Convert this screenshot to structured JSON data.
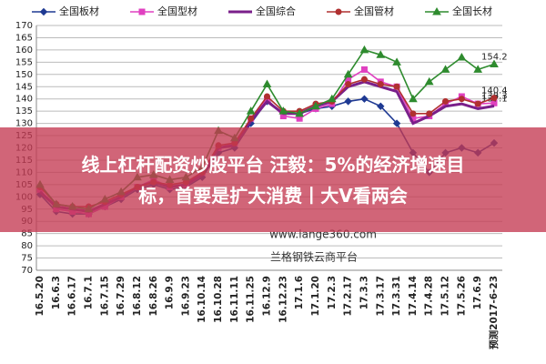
{
  "chart_data": {
    "type": "line",
    "categories": [
      "16.5.20",
      "16.6.3",
      "16.6.17",
      "16.7.1",
      "16.7.15",
      "16.7.29",
      "16.8.12",
      "16.8.26",
      "16.9.9",
      "16.9.23",
      "16.10.14",
      "16.10.28",
      "16.11.11",
      "16.11.25",
      "16.12.9",
      "16.12.23",
      "17.1.6",
      "17.1.20",
      "17.2.3",
      "17.2.17",
      "17.3.3",
      "17.3.17",
      "17.3.31",
      "17.4.14",
      "17.4.28",
      "17.5.12",
      "17.5.26",
      "17.6.9",
      "预测2017-6-23"
    ],
    "series": [
      {
        "name": "全国板材",
        "color": "#1f3a93",
        "marker": "diamond",
        "end_label": false,
        "values": [
          101,
          94,
          93,
          93,
          96,
          99,
          103,
          105,
          103,
          104,
          108,
          118,
          120,
          130,
          139,
          134,
          134,
          136,
          137,
          139,
          140,
          137,
          130,
          118,
          110,
          118,
          120,
          118,
          122
        ]
      },
      {
        "name": "全国型材",
        "color": "#e040c0",
        "marker": "square",
        "end_label": true,
        "values": [
          103,
          95,
          94,
          93,
          96,
          100,
          104,
          107,
          104,
          105,
          110,
          120,
          122,
          132,
          140,
          133,
          132,
          136,
          138,
          148,
          152,
          147,
          145,
          132,
          133,
          138,
          141,
          138,
          138.3
        ]
      },
      {
        "name": "全国综合",
        "color": "#7a1f8a",
        "marker": "none",
        "end_label": true,
        "values": [
          102,
          96,
          95,
          94,
          97,
          100,
          104,
          106,
          104,
          105,
          109,
          120,
          121,
          131,
          139,
          134,
          134,
          137,
          139,
          145,
          147,
          145,
          143,
          130,
          133,
          137,
          138,
          136,
          137.1
        ]
      },
      {
        "name": "全国管材",
        "color": "#b03030",
        "marker": "circle",
        "end_label": true,
        "values": [
          104,
          97,
          96,
          96,
          98,
          101,
          104,
          106,
          105,
          106,
          110,
          121,
          122,
          132,
          141,
          135,
          135,
          138,
          139,
          146,
          148,
          146,
          145,
          134,
          134,
          139,
          140,
          138,
          140.4
        ]
      },
      {
        "name": "全国长材",
        "color": "#2e8b2e",
        "marker": "triangle",
        "end_label": true,
        "values": [
          105,
          97,
          96,
          95,
          99,
          102,
          108,
          109,
          107,
          108,
          112,
          127,
          124,
          135,
          146,
          135,
          134,
          137,
          140,
          150,
          160,
          158,
          155,
          140,
          147,
          152,
          157,
          152,
          154.2
        ]
      }
    ],
    "ylim": [
      70,
      170
    ],
    "yticks": [
      70,
      75,
      80,
      85,
      90,
      95,
      100,
      105,
      110,
      115,
      120,
      125,
      130,
      135,
      140,
      145,
      150,
      155,
      160,
      165,
      170
    ],
    "grid": true,
    "watermarks": [
      "www.lange360.com",
      "兰格钢铁云商平台"
    ]
  },
  "overlay": {
    "lines": [
      "线上杠杆配资炒股平台 汪毅：5%的经济增速目",
      "标，首要是扩大消费丨大V看两会"
    ]
  }
}
